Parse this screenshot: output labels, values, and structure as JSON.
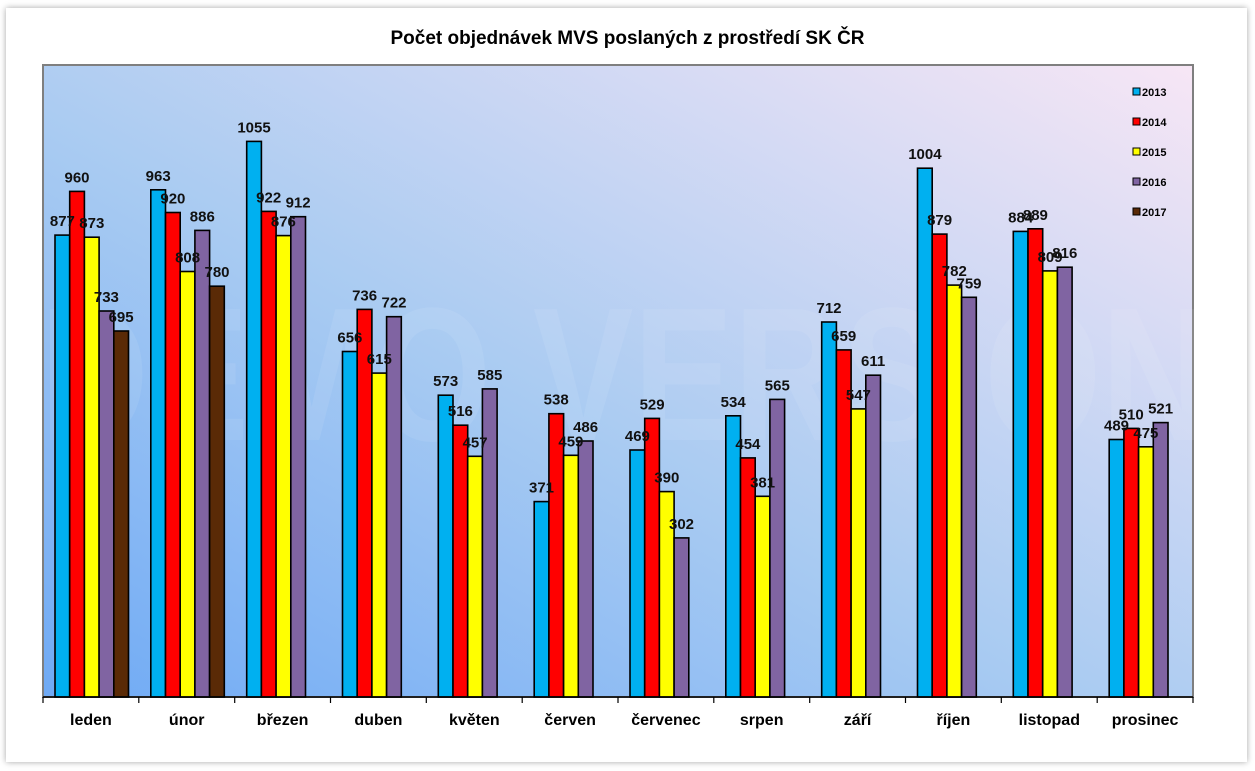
{
  "chart_data": {
    "type": "bar",
    "title": "Počet objednávek MVS poslaných z prostředí SK ČR",
    "xlabel": "",
    "ylabel": "",
    "ylim": [
      0,
      1200
    ],
    "grid": false,
    "legend_position": "right",
    "watermark": "DEMO VERSION",
    "categories": [
      "leden",
      "únor",
      "březen",
      "duben",
      "květen",
      "červen",
      "červenec",
      "srpen",
      "září",
      "říjen",
      "listopad",
      "prosinec"
    ],
    "series": [
      {
        "name": "2013",
        "color": "#00B0F0",
        "values": [
          877,
          963,
          1055,
          656,
          573,
          371,
          469,
          534,
          712,
          1004,
          884,
          489
        ]
      },
      {
        "name": "2014",
        "color": "#FF0000",
        "values": [
          960,
          920,
          922,
          736,
          516,
          538,
          529,
          454,
          659,
          879,
          889,
          510
        ]
      },
      {
        "name": "2015",
        "color": "#FFFF00",
        "values": [
          873,
          808,
          876,
          615,
          457,
          459,
          390,
          381,
          547,
          782,
          809,
          475
        ]
      },
      {
        "name": "2016",
        "color": "#8064A2",
        "values": [
          733,
          886,
          912,
          722,
          585,
          486,
          302,
          565,
          611,
          759,
          816,
          521
        ]
      },
      {
        "name": "2017",
        "color": "#5A2A06",
        "values": [
          695,
          780,
          null,
          null,
          null,
          null,
          null,
          null,
          null,
          null,
          null,
          null
        ]
      }
    ]
  }
}
